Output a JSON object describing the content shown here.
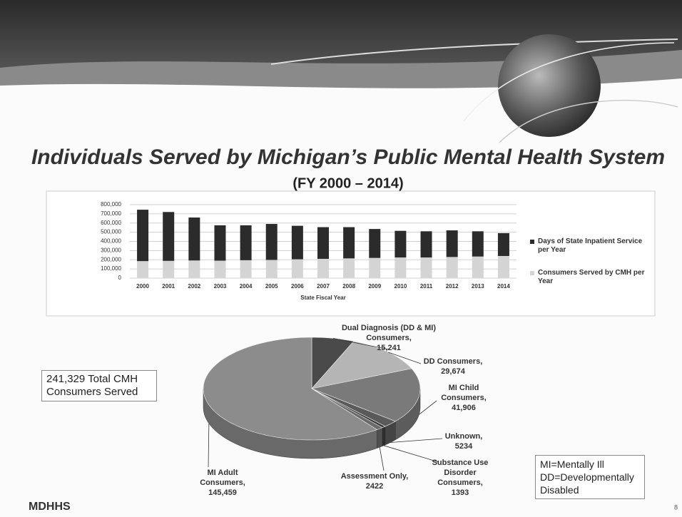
{
  "slide": {
    "title": "Individuals Served by Michigan’s Public Mental Health System",
    "subtitle": "(FY 2000 – 2014)",
    "total_box": "241,329 Total CMH Consumers Served",
    "key": [
      "MI=Mentally Ill",
      "DD=Developmentally Disabled"
    ],
    "logo": "MDHHS",
    "page_number": "8"
  },
  "chart_data": [
    {
      "type": "bar",
      "stacked": true,
      "categories": [
        "2000",
        "2001",
        "2002",
        "2003",
        "2004",
        "2005",
        "2006",
        "2007",
        "2008",
        "2009",
        "2010",
        "2011",
        "2012",
        "2013",
        "2014"
      ],
      "xlabel": "State Fiscal Year",
      "ylim": [
        0,
        800000
      ],
      "yticks": [
        0,
        {
          "value": 100000,
          "label": "100,000"
        },
        {
          "value": 200000,
          "label": "200,000"
        },
        {
          "value": 300000,
          "label": "300,000"
        },
        {
          "value": 400000,
          "label": "400,000"
        },
        {
          "value": 500000,
          "label": "500,000"
        },
        {
          "value": 600000,
          "label": "600,000"
        },
        {
          "value": 700000,
          "label": "700,000"
        },
        {
          "value": 800000,
          "label": "800,000"
        }
      ],
      "grid": true,
      "legend": "right",
      "series": [
        {
          "name": "Days of State Inpatient Service per Year",
          "color": "#2b2b2b",
          "values": [
            560000,
            532000,
            468000,
            385000,
            380000,
            392000,
            365000,
            345000,
            340000,
            315000,
            290000,
            285000,
            290000,
            275000,
            249000
          ]
        },
        {
          "name": "Consumers Served by CMH per Year",
          "color": "#d4d4d4",
          "values": [
            185000,
            188000,
            192000,
            190000,
            195000,
            198000,
            205000,
            210000,
            215000,
            220000,
            225000,
            225000,
            230000,
            235000,
            241000
          ]
        }
      ]
    },
    {
      "type": "pie",
      "categories": [
        "Dual Diagnosis (DD & MI) Consumers,",
        "DD Consumers,",
        "MI Child Consumers,",
        "Unknown,",
        "Substance Use Disorder Consumers,",
        "Assessment Only,",
        "MI Adult Consumers,"
      ],
      "values": [
        15241,
        29674,
        41906,
        5234,
        1393,
        2422,
        145459
      ],
      "value_labels": [
        "15,241",
        "29,674",
        "41,906",
        "5234",
        "1393",
        "2422",
        "145,459"
      ],
      "colors": [
        "#4a4a4a",
        "#b5b5b5",
        "#7a7a7a",
        "#5a5a5a",
        "#3a3a3a",
        "#6a6a6a",
        "#8c8c8c"
      ]
    }
  ]
}
